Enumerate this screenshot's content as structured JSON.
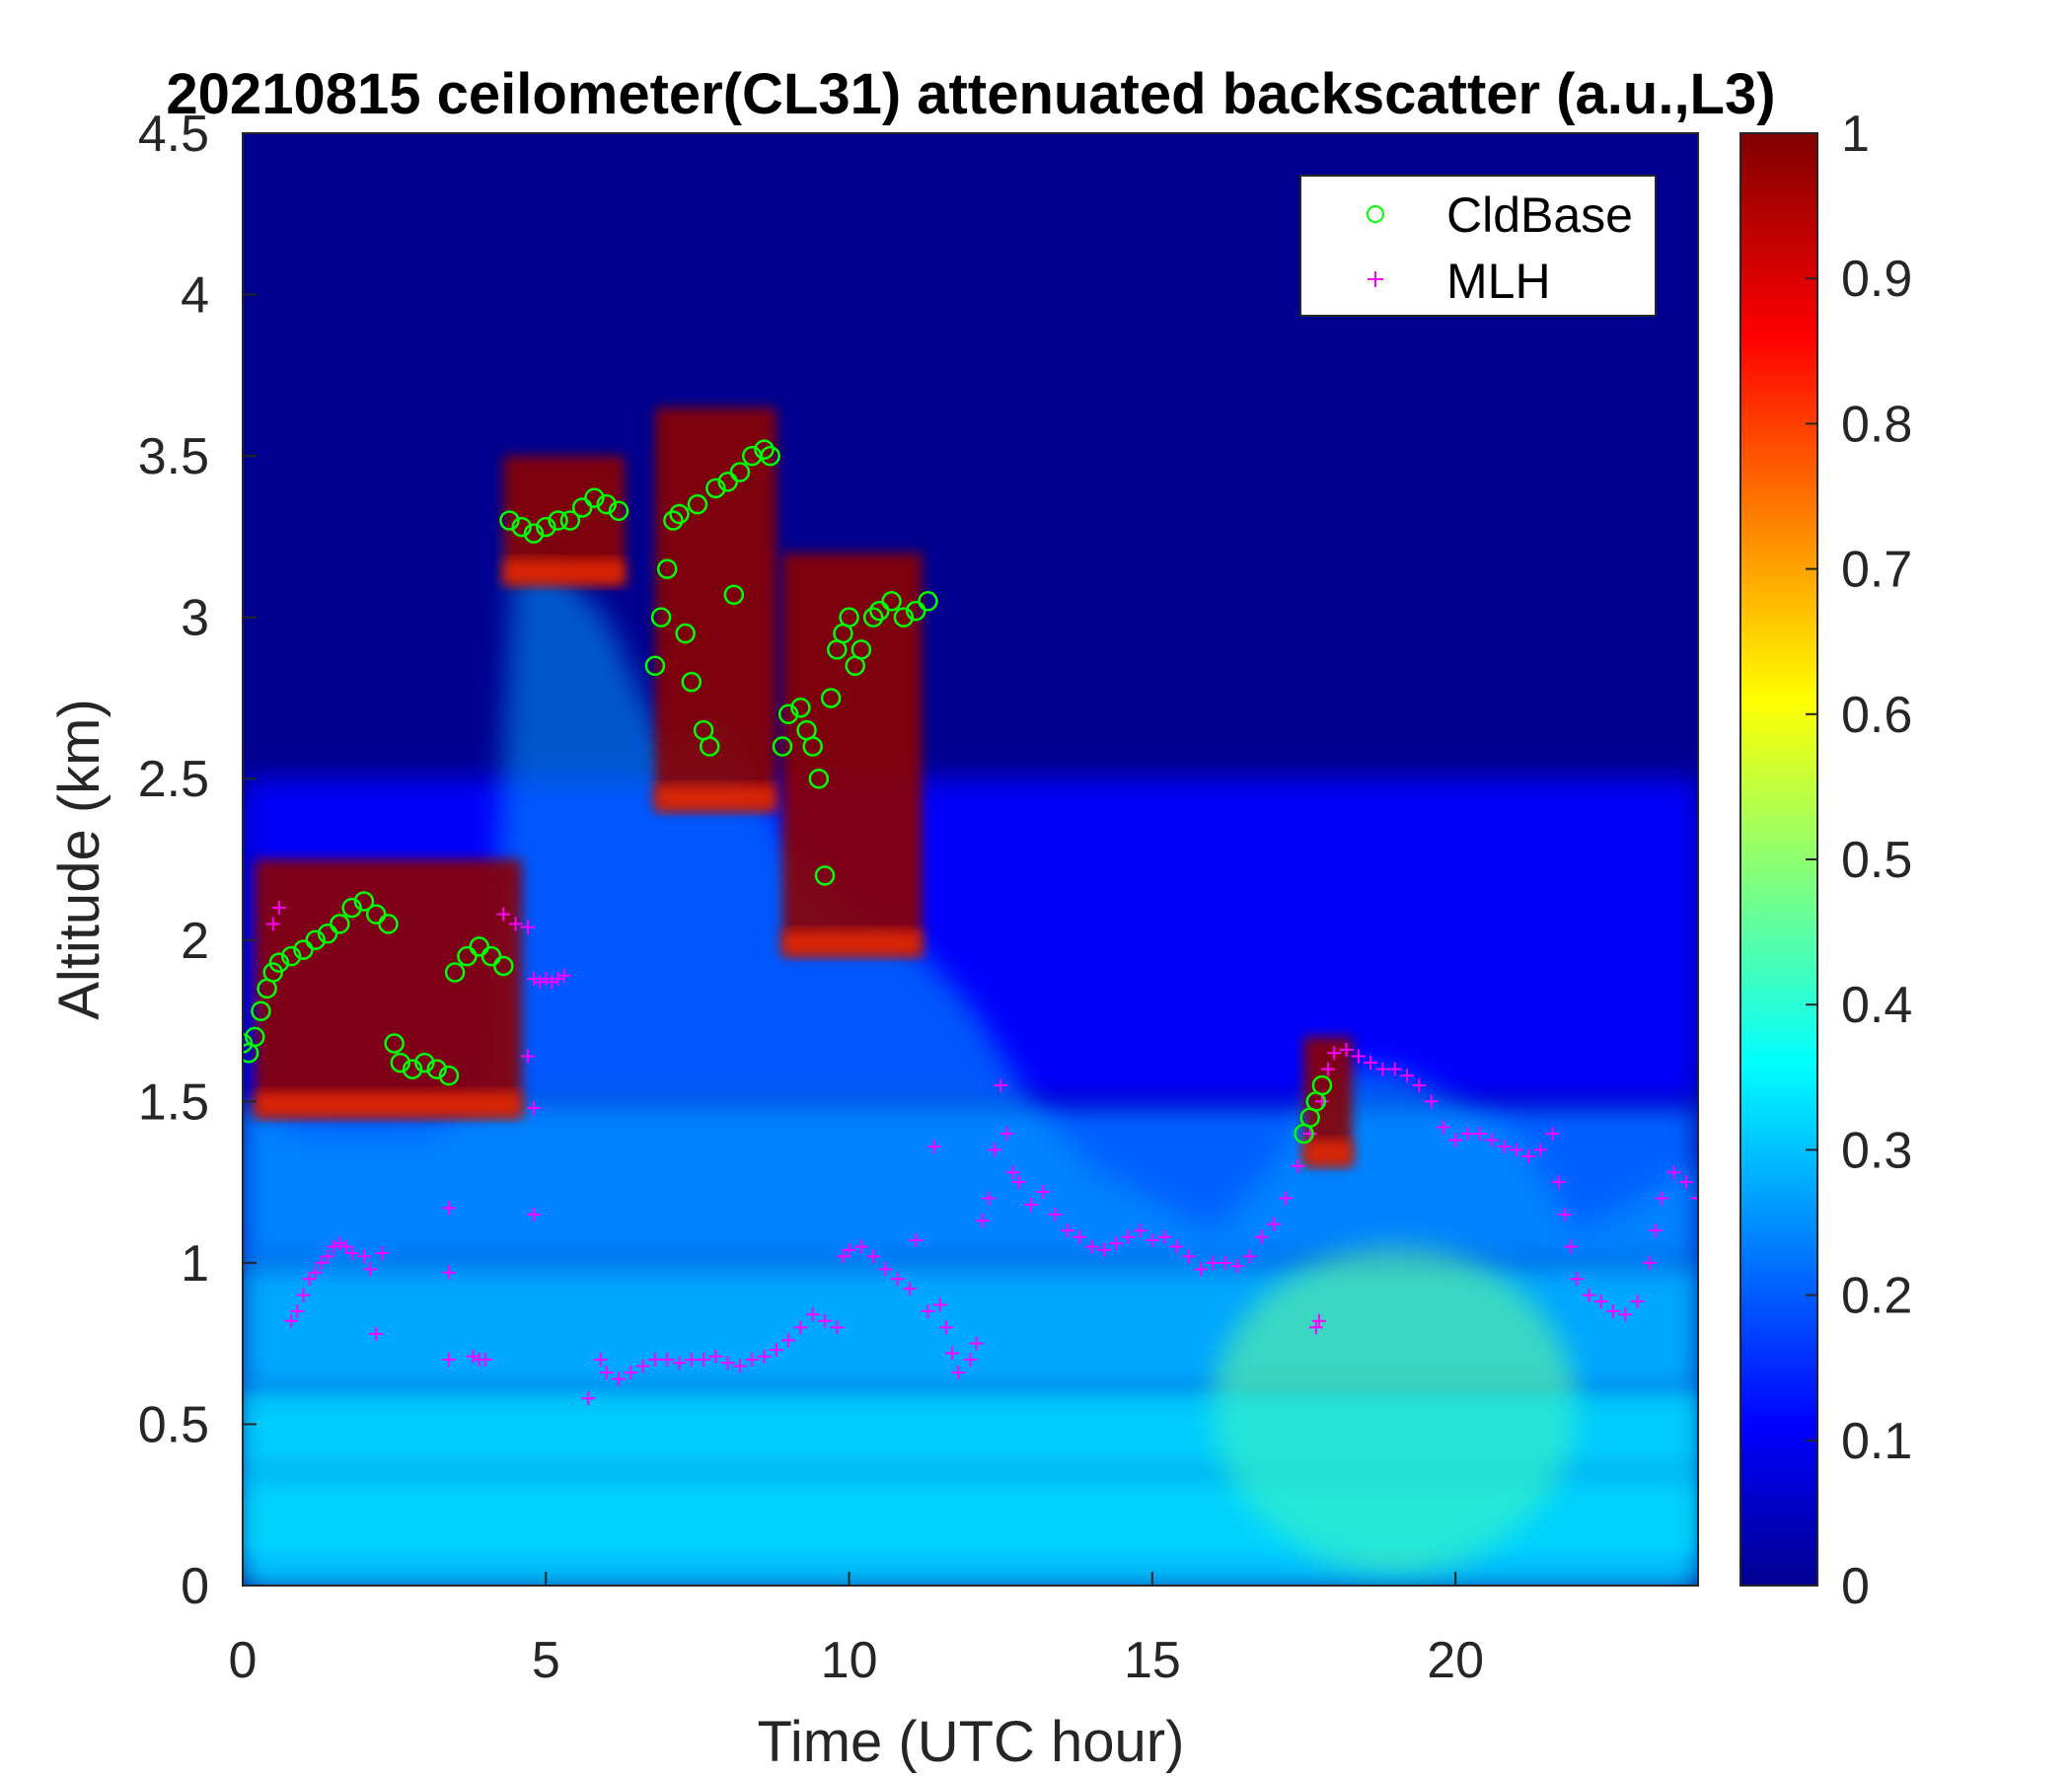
{
  "chart_data": {
    "type": "heatmap",
    "title": "20210815 ceilometer(CL31) attenuated backscatter (a.u.,L3)",
    "xlabel": "Time (UTC hour)",
    "ylabel": "Altitude (km)",
    "xlim": [
      0,
      24
    ],
    "ylim": [
      0,
      4.5
    ],
    "xticks": [
      "0",
      "5",
      "10",
      "15",
      "20"
    ],
    "xtick_values": [
      0,
      5,
      10,
      15,
      20
    ],
    "yticks": [
      "0",
      "0.5",
      "1",
      "1.5",
      "2",
      "2.5",
      "3",
      "3.5",
      "4",
      "4.5"
    ],
    "ytick_values": [
      0,
      0.5,
      1,
      1.5,
      2,
      2.5,
      3,
      3.5,
      4,
      4.5
    ],
    "colorbar": {
      "colormap": "jet",
      "clim": [
        0,
        1
      ],
      "ticks": [
        "0",
        "0.1",
        "0.2",
        "0.3",
        "0.4",
        "0.5",
        "0.6",
        "0.7",
        "0.8",
        "0.9",
        "1"
      ],
      "tick_values": [
        0,
        0.1,
        0.2,
        0.3,
        0.4,
        0.5,
        0.6,
        0.7,
        0.8,
        0.9,
        1
      ]
    },
    "legend": {
      "placement": "top-right",
      "entries": [
        "CldBase",
        "MLH"
      ]
    },
    "series": [
      {
        "name": "CldBase",
        "marker": "circle",
        "color": "#00ff00",
        "points": [
          [
            0.0,
            1.68
          ],
          [
            0.1,
            1.65
          ],
          [
            0.2,
            1.7
          ],
          [
            0.3,
            1.78
          ],
          [
            0.4,
            1.85
          ],
          [
            0.5,
            1.9
          ],
          [
            0.6,
            1.93
          ],
          [
            0.8,
            1.95
          ],
          [
            1.0,
            1.97
          ],
          [
            1.2,
            2.0
          ],
          [
            1.4,
            2.02
          ],
          [
            1.6,
            2.05
          ],
          [
            1.8,
            2.1
          ],
          [
            2.0,
            2.12
          ],
          [
            2.2,
            2.08
          ],
          [
            2.4,
            2.05
          ],
          [
            2.5,
            1.68
          ],
          [
            2.6,
            1.62
          ],
          [
            2.8,
            1.6
          ],
          [
            3.0,
            1.62
          ],
          [
            3.2,
            1.6
          ],
          [
            3.4,
            1.58
          ],
          [
            3.5,
            1.9
          ],
          [
            3.7,
            1.95
          ],
          [
            3.9,
            1.98
          ],
          [
            4.1,
            1.95
          ],
          [
            4.3,
            1.92
          ],
          [
            4.4,
            3.3
          ],
          [
            4.6,
            3.28
          ],
          [
            4.8,
            3.26
          ],
          [
            5.0,
            3.28
          ],
          [
            5.2,
            3.3
          ],
          [
            5.4,
            3.3
          ],
          [
            5.6,
            3.34
          ],
          [
            5.8,
            3.37
          ],
          [
            6.0,
            3.35
          ],
          [
            6.2,
            3.33
          ],
          [
            6.8,
            2.85
          ],
          [
            6.9,
            3.0
          ],
          [
            7.0,
            3.15
          ],
          [
            7.1,
            3.3
          ],
          [
            7.2,
            3.32
          ],
          [
            7.3,
            2.95
          ],
          [
            7.4,
            2.8
          ],
          [
            7.5,
            3.35
          ],
          [
            7.6,
            2.65
          ],
          [
            7.7,
            2.6
          ],
          [
            7.8,
            3.4
          ],
          [
            8.0,
            3.42
          ],
          [
            8.1,
            3.07
          ],
          [
            8.2,
            3.45
          ],
          [
            8.4,
            3.5
          ],
          [
            8.6,
            3.52
          ],
          [
            8.7,
            3.5
          ],
          [
            8.9,
            2.6
          ],
          [
            9.0,
            2.7
          ],
          [
            9.2,
            2.72
          ],
          [
            9.3,
            2.65
          ],
          [
            9.4,
            2.6
          ],
          [
            9.5,
            2.5
          ],
          [
            9.6,
            2.2
          ],
          [
            9.7,
            2.75
          ],
          [
            9.8,
            2.9
          ],
          [
            9.9,
            2.95
          ],
          [
            10.0,
            3.0
          ],
          [
            10.1,
            2.85
          ],
          [
            10.2,
            2.9
          ],
          [
            10.4,
            3.0
          ],
          [
            10.5,
            3.02
          ],
          [
            10.7,
            3.05
          ],
          [
            10.9,
            3.0
          ],
          [
            11.1,
            3.02
          ],
          [
            11.3,
            3.05
          ],
          [
            17.5,
            1.4
          ],
          [
            17.6,
            1.45
          ],
          [
            17.7,
            1.5
          ],
          [
            17.8,
            1.55
          ]
        ]
      },
      {
        "name": "MLH",
        "marker": "plus",
        "color": "#ff00ff",
        "points": [
          [
            0.8,
            0.82
          ],
          [
            0.9,
            0.85
          ],
          [
            1.0,
            0.9
          ],
          [
            1.1,
            0.95
          ],
          [
            1.2,
            0.97
          ],
          [
            1.3,
            1.0
          ],
          [
            1.4,
            1.02
          ],
          [
            1.5,
            1.05
          ],
          [
            1.6,
            1.06
          ],
          [
            1.7,
            1.05
          ],
          [
            1.8,
            1.03
          ],
          [
            2.0,
            1.02
          ],
          [
            2.1,
            0.98
          ],
          [
            2.2,
            0.78
          ],
          [
            2.3,
            1.03
          ],
          [
            0.5,
            2.05
          ],
          [
            0.6,
            2.1
          ],
          [
            4.3,
            2.08
          ],
          [
            4.5,
            2.05
          ],
          [
            4.7,
            2.04
          ],
          [
            4.8,
            1.88
          ],
          [
            4.9,
            1.87
          ],
          [
            5.0,
            1.88
          ],
          [
            5.1,
            1.87
          ],
          [
            5.2,
            1.88
          ],
          [
            5.3,
            1.89
          ],
          [
            4.7,
            1.64
          ],
          [
            4.8,
            1.48
          ],
          [
            4.8,
            1.15
          ],
          [
            3.4,
            1.17
          ],
          [
            3.4,
            0.97
          ],
          [
            3.4,
            0.7
          ],
          [
            3.8,
            0.71
          ],
          [
            3.9,
            0.7
          ],
          [
            4.0,
            0.7
          ],
          [
            5.7,
            0.58
          ],
          [
            5.9,
            0.7
          ],
          [
            6.0,
            0.66
          ],
          [
            6.2,
            0.64
          ],
          [
            6.4,
            0.66
          ],
          [
            6.6,
            0.68
          ],
          [
            6.8,
            0.7
          ],
          [
            7.0,
            0.7
          ],
          [
            7.2,
            0.69
          ],
          [
            7.4,
            0.7
          ],
          [
            7.6,
            0.7
          ],
          [
            7.8,
            0.71
          ],
          [
            8.0,
            0.69
          ],
          [
            8.2,
            0.68
          ],
          [
            8.4,
            0.7
          ],
          [
            8.6,
            0.71
          ],
          [
            8.8,
            0.73
          ],
          [
            9.0,
            0.76
          ],
          [
            9.2,
            0.8
          ],
          [
            9.4,
            0.84
          ],
          [
            9.6,
            0.82
          ],
          [
            9.8,
            0.8
          ],
          [
            9.9,
            1.02
          ],
          [
            10.0,
            1.04
          ],
          [
            10.2,
            1.05
          ],
          [
            10.4,
            1.02
          ],
          [
            10.6,
            0.98
          ],
          [
            10.8,
            0.95
          ],
          [
            11.0,
            0.92
          ],
          [
            11.1,
            1.07
          ],
          [
            11.3,
            0.85
          ],
          [
            11.4,
            1.36
          ],
          [
            11.5,
            0.87
          ],
          [
            11.6,
            0.8
          ],
          [
            11.7,
            0.72
          ],
          [
            11.8,
            0.66
          ],
          [
            12.0,
            0.7
          ],
          [
            12.1,
            0.75
          ],
          [
            12.2,
            1.13
          ],
          [
            12.3,
            1.2
          ],
          [
            12.4,
            1.35
          ],
          [
            12.5,
            1.55
          ],
          [
            12.6,
            1.4
          ],
          [
            12.7,
            1.28
          ],
          [
            12.8,
            1.25
          ],
          [
            13.0,
            1.18
          ],
          [
            13.2,
            1.22
          ],
          [
            13.4,
            1.15
          ],
          [
            13.6,
            1.1
          ],
          [
            13.8,
            1.08
          ],
          [
            14.0,
            1.05
          ],
          [
            14.2,
            1.04
          ],
          [
            14.4,
            1.06
          ],
          [
            14.6,
            1.08
          ],
          [
            14.8,
            1.1
          ],
          [
            15.0,
            1.07
          ],
          [
            15.2,
            1.08
          ],
          [
            15.4,
            1.05
          ],
          [
            15.6,
            1.02
          ],
          [
            15.8,
            0.98
          ],
          [
            16.0,
            1.0
          ],
          [
            16.2,
            1.0
          ],
          [
            16.4,
            0.99
          ],
          [
            16.6,
            1.02
          ],
          [
            16.8,
            1.08
          ],
          [
            17.0,
            1.12
          ],
          [
            17.2,
            1.2
          ],
          [
            17.4,
            1.3
          ],
          [
            17.6,
            1.4
          ],
          [
            17.7,
            0.8
          ],
          [
            17.75,
            0.82
          ],
          [
            17.8,
            1.5
          ],
          [
            17.9,
            1.6
          ],
          [
            18.0,
            1.65
          ],
          [
            18.2,
            1.66
          ],
          [
            18.4,
            1.64
          ],
          [
            18.6,
            1.62
          ],
          [
            18.8,
            1.6
          ],
          [
            19.0,
            1.6
          ],
          [
            19.2,
            1.58
          ],
          [
            19.4,
            1.55
          ],
          [
            19.6,
            1.5
          ],
          [
            19.8,
            1.42
          ],
          [
            20.0,
            1.38
          ],
          [
            20.2,
            1.4
          ],
          [
            20.4,
            1.4
          ],
          [
            20.6,
            1.38
          ],
          [
            20.8,
            1.36
          ],
          [
            21.0,
            1.35
          ],
          [
            21.2,
            1.33
          ],
          [
            21.4,
            1.35
          ],
          [
            21.6,
            1.4
          ],
          [
            21.7,
            1.25
          ],
          [
            21.8,
            1.15
          ],
          [
            21.9,
            1.05
          ],
          [
            22.0,
            0.95
          ],
          [
            22.2,
            0.9
          ],
          [
            22.4,
            0.88
          ],
          [
            22.6,
            0.85
          ],
          [
            22.8,
            0.84
          ],
          [
            23.0,
            0.88
          ],
          [
            23.2,
            1.0
          ],
          [
            23.3,
            1.1
          ],
          [
            23.4,
            1.2
          ],
          [
            23.6,
            1.28
          ],
          [
            23.8,
            1.25
          ],
          [
            24.0,
            1.2
          ]
        ]
      }
    ],
    "backscatter_features": [
      {
        "t": 0.0,
        "z0": 0.0,
        "z1": 1.5,
        "v": 0.35
      },
      {
        "t": 12.0,
        "z0": 0.0,
        "z1": 0.9,
        "v": 0.4
      },
      {
        "t": 19.0,
        "z0": 0.3,
        "z1": 0.7,
        "v": 0.5
      }
    ]
  },
  "colors": {
    "cloud_base": "#00ff00",
    "mlh": "#ff00ff",
    "background_low": "#00008f",
    "high": "#800000"
  }
}
